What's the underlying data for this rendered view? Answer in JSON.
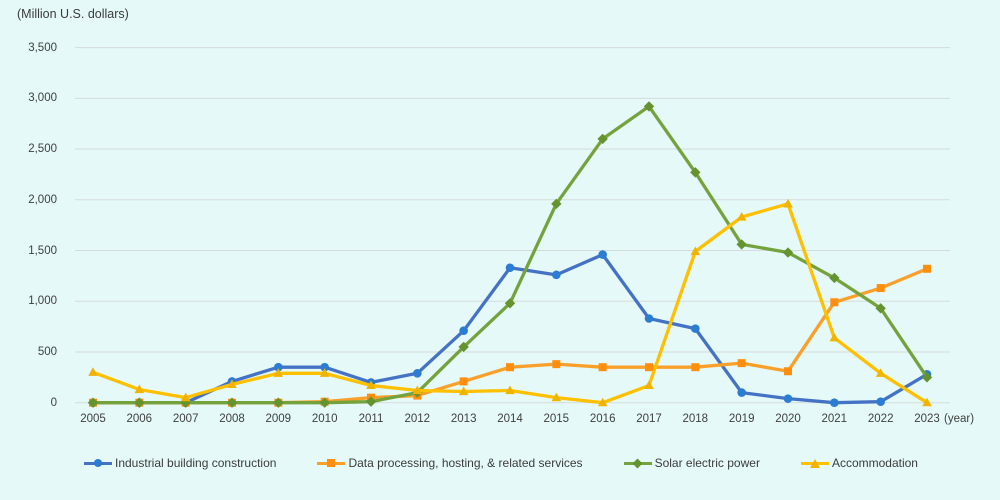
{
  "unit_label": "(Million U.S. dollars)",
  "x_axis_suffix": "(year)",
  "colors": {
    "background": "#e6f9f9",
    "gridline": "#d5dada",
    "text": "#404040",
    "series_blue": "#4472c4",
    "series_blue_marker": "#2b7cd3",
    "series_orange": "#f9a02b",
    "series_orange_marker": "#ff8e0e",
    "series_green": "#74a33e",
    "series_green_marker": "#64932f",
    "series_yellow": "#ffc000",
    "series_yellow_marker": "#efb300"
  },
  "chart_data": {
    "type": "line",
    "title": "",
    "xlabel": "(year)",
    "ylabel": "(Million U.S. dollars)",
    "ylim": [
      0,
      3500
    ],
    "y_tick_step": 500,
    "y_tick_labels": [
      "0",
      "500",
      "1,000",
      "1,500",
      "2,000",
      "2,500",
      "3,000",
      "3,500"
    ],
    "grid": true,
    "legend_position": "bottom",
    "categories": [
      "2005",
      "2006",
      "2007",
      "2008",
      "2009",
      "2010",
      "2011",
      "2012",
      "2013",
      "2014",
      "2015",
      "2016",
      "2017",
      "2018",
      "2019",
      "2020",
      "2021",
      "2022",
      "2023"
    ],
    "series": [
      {
        "name": "Industrial building construction",
        "marker": "circle",
        "color": "#4472c4",
        "marker_color": "#2b7cd3",
        "values": [
          0,
          0,
          0,
          210,
          350,
          350,
          200,
          290,
          710,
          1330,
          1260,
          1460,
          830,
          730,
          100,
          40,
          0,
          10,
          280
        ]
      },
      {
        "name": "Data processing, hosting, & related services",
        "marker": "square",
        "color": "#f9a02b",
        "marker_color": "#ff8e0e",
        "values": [
          0,
          0,
          0,
          0,
          0,
          10,
          50,
          70,
          210,
          350,
          380,
          350,
          350,
          350,
          390,
          310,
          990,
          1130,
          1320
        ]
      },
      {
        "name": "Solar electric power",
        "marker": "diamond",
        "color": "#74a33e",
        "marker_color": "#64932f",
        "values": [
          0,
          0,
          0,
          0,
          0,
          0,
          10,
          100,
          550,
          980,
          1960,
          2600,
          2920,
          2270,
          1560,
          1480,
          1230,
          930,
          250
        ]
      },
      {
        "name": "Accommodation",
        "marker": "triangle",
        "color": "#ffc000",
        "marker_color": "#efb300",
        "values": [
          300,
          130,
          50,
          180,
          290,
          290,
          170,
          120,
          110,
          120,
          50,
          0,
          170,
          1490,
          1830,
          1960,
          640,
          290,
          0
        ]
      }
    ]
  }
}
